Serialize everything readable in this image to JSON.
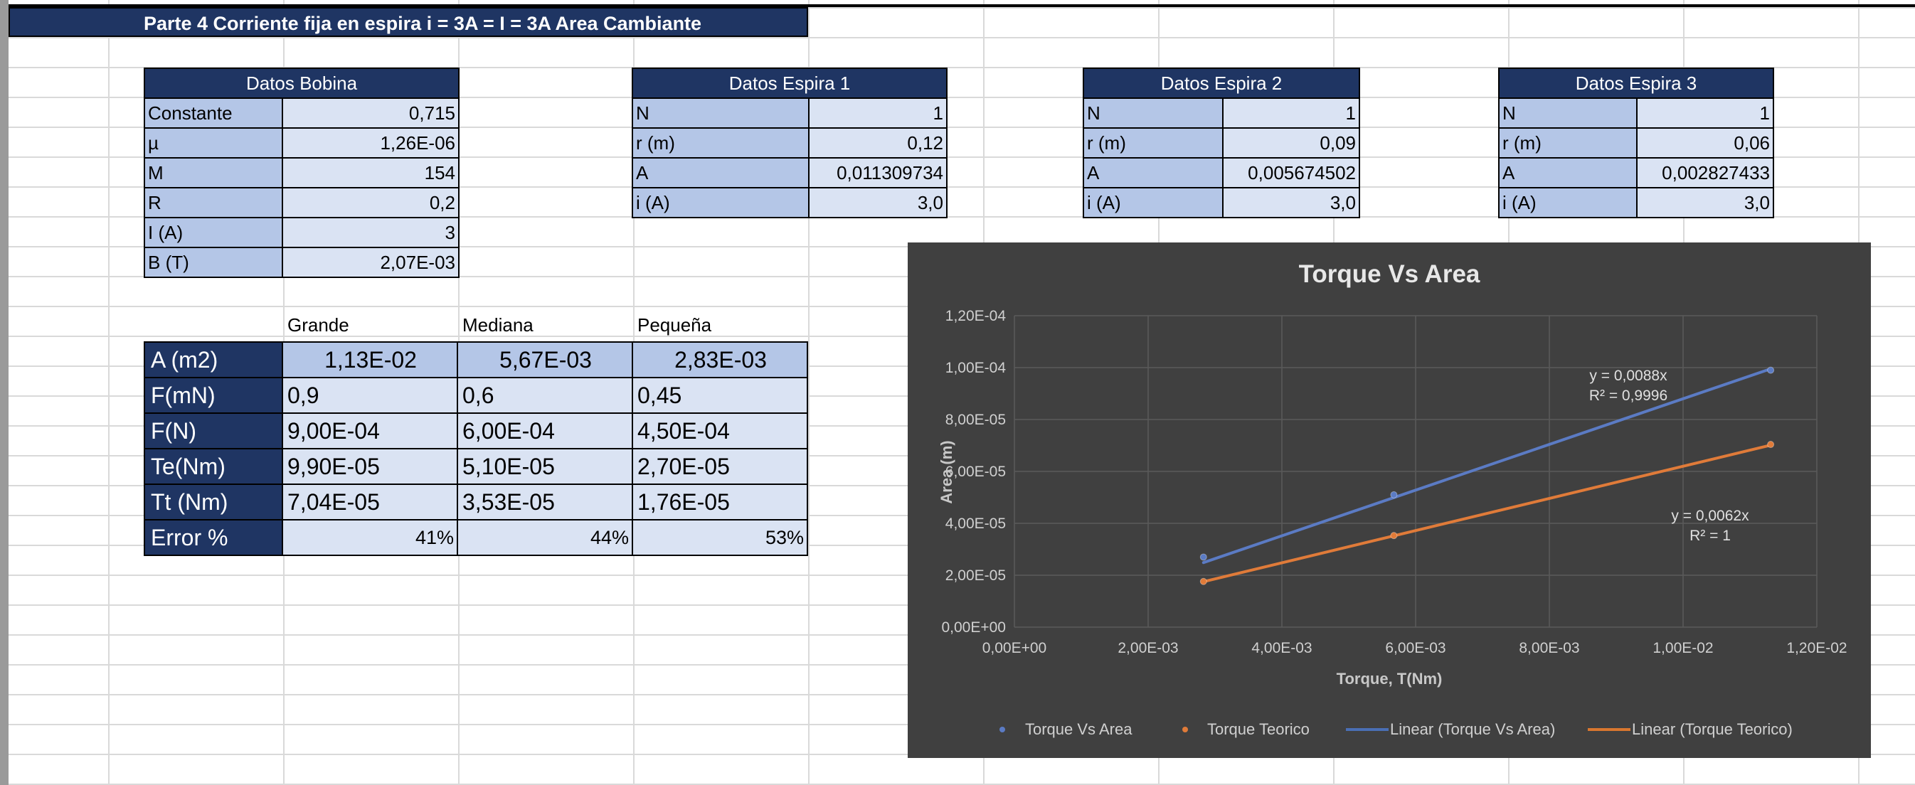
{
  "sheet": {
    "title": "Parte 4 Corriente fija en espira i = 3A = I = 3A Area Cambiante"
  },
  "datos_bobina": {
    "title": "Datos Bobina",
    "rows": [
      {
        "label": "Constante",
        "value": "0,715"
      },
      {
        "label": "µ",
        "value": "1,26E-06"
      },
      {
        "label": "M",
        "value": "154"
      },
      {
        "label": "R",
        "value": "0,2"
      },
      {
        "label": "I (A)",
        "value": "3"
      },
      {
        "label": "B (T)",
        "value": "2,07E-03"
      }
    ]
  },
  "espiras": [
    {
      "title": "Datos Espira 1",
      "rows": [
        {
          "label": "N",
          "value": "1"
        },
        {
          "label": "r (m)",
          "value": "0,12"
        },
        {
          "label": "A",
          "value": "0,011309734"
        },
        {
          "label": "i (A)",
          "value": "3,0"
        }
      ]
    },
    {
      "title": "Datos Espira 2",
      "rows": [
        {
          "label": "N",
          "value": "1"
        },
        {
          "label": "r (m)",
          "value": "0,09"
        },
        {
          "label": "A",
          "value": "0,005674502"
        },
        {
          "label": "i (A)",
          "value": "3,0"
        }
      ]
    },
    {
      "title": "Datos Espira 3",
      "rows": [
        {
          "label": "N",
          "value": "1"
        },
        {
          "label": "r (m)",
          "value": "0,06"
        },
        {
          "label": "A",
          "value": "0,002827433"
        },
        {
          "label": "i (A)",
          "value": "3,0"
        }
      ]
    }
  ],
  "results": {
    "columns": [
      "Grande",
      "Mediana",
      "Pequeña"
    ],
    "rows": [
      {
        "label": "A (m2)",
        "values": [
          "1,13E-02",
          "5,67E-03",
          "2,83E-03"
        ]
      },
      {
        "label": "F(mN)",
        "values": [
          "0,9",
          "0,6",
          "0,45"
        ]
      },
      {
        "label": "F(N)",
        "values": [
          "9,00E-04",
          "6,00E-04",
          "4,50E-04"
        ]
      },
      {
        "label": "Te(Nm)",
        "values": [
          "9,90E-05",
          "5,10E-05",
          "2,70E-05"
        ]
      },
      {
        "label": "Tt (Nm)",
        "values": [
          "7,04E-05",
          "3,53E-05",
          "1,76E-05"
        ]
      },
      {
        "label": "Error %",
        "values": [
          "41%",
          "44%",
          "53%"
        ]
      }
    ]
  },
  "chart_data": {
    "type": "scatter",
    "title": "Torque Vs Area",
    "xlabel": "Torque, T(Nm)",
    "ylabel": "Area (m)",
    "xlim": [
      0,
      0.012
    ],
    "ylim": [
      0,
      0.00012
    ],
    "x_ticks": [
      "0,00E+00",
      "2,00E-03",
      "4,00E-03",
      "6,00E-03",
      "8,00E-03",
      "1,00E-02",
      "1,20E-02"
    ],
    "y_ticks": [
      "0,00E+00",
      "2,00E-05",
      "4,00E-05",
      "6,00E-05",
      "8,00E-05",
      "1,00E-04",
      "1,20E-04"
    ],
    "grid": true,
    "legend_position": "bottom",
    "background": "#404040",
    "series": [
      {
        "name": "Torque Vs Area",
        "color": "#5b7bc4",
        "x": [
          0.011309734,
          0.005674502,
          0.002827433
        ],
        "y": [
          9.9e-05,
          5.1e-05,
          2.7e-05
        ],
        "trendline_name": "Linear (Torque Vs Area)",
        "trendline_slope": 0.0088,
        "equation": "y = 0,0088x",
        "r2": "R² = 0,9996"
      },
      {
        "name": "Torque Teorico",
        "color": "#e07b39",
        "x": [
          0.011309734,
          0.005674502,
          0.002827433
        ],
        "y": [
          7.04e-05,
          3.53e-05,
          1.76e-05
        ],
        "trendline_name": "Linear (Torque Teorico)",
        "trendline_slope": 0.0062,
        "equation": "y = 0,0062x",
        "r2": "R² = 1"
      }
    ]
  }
}
